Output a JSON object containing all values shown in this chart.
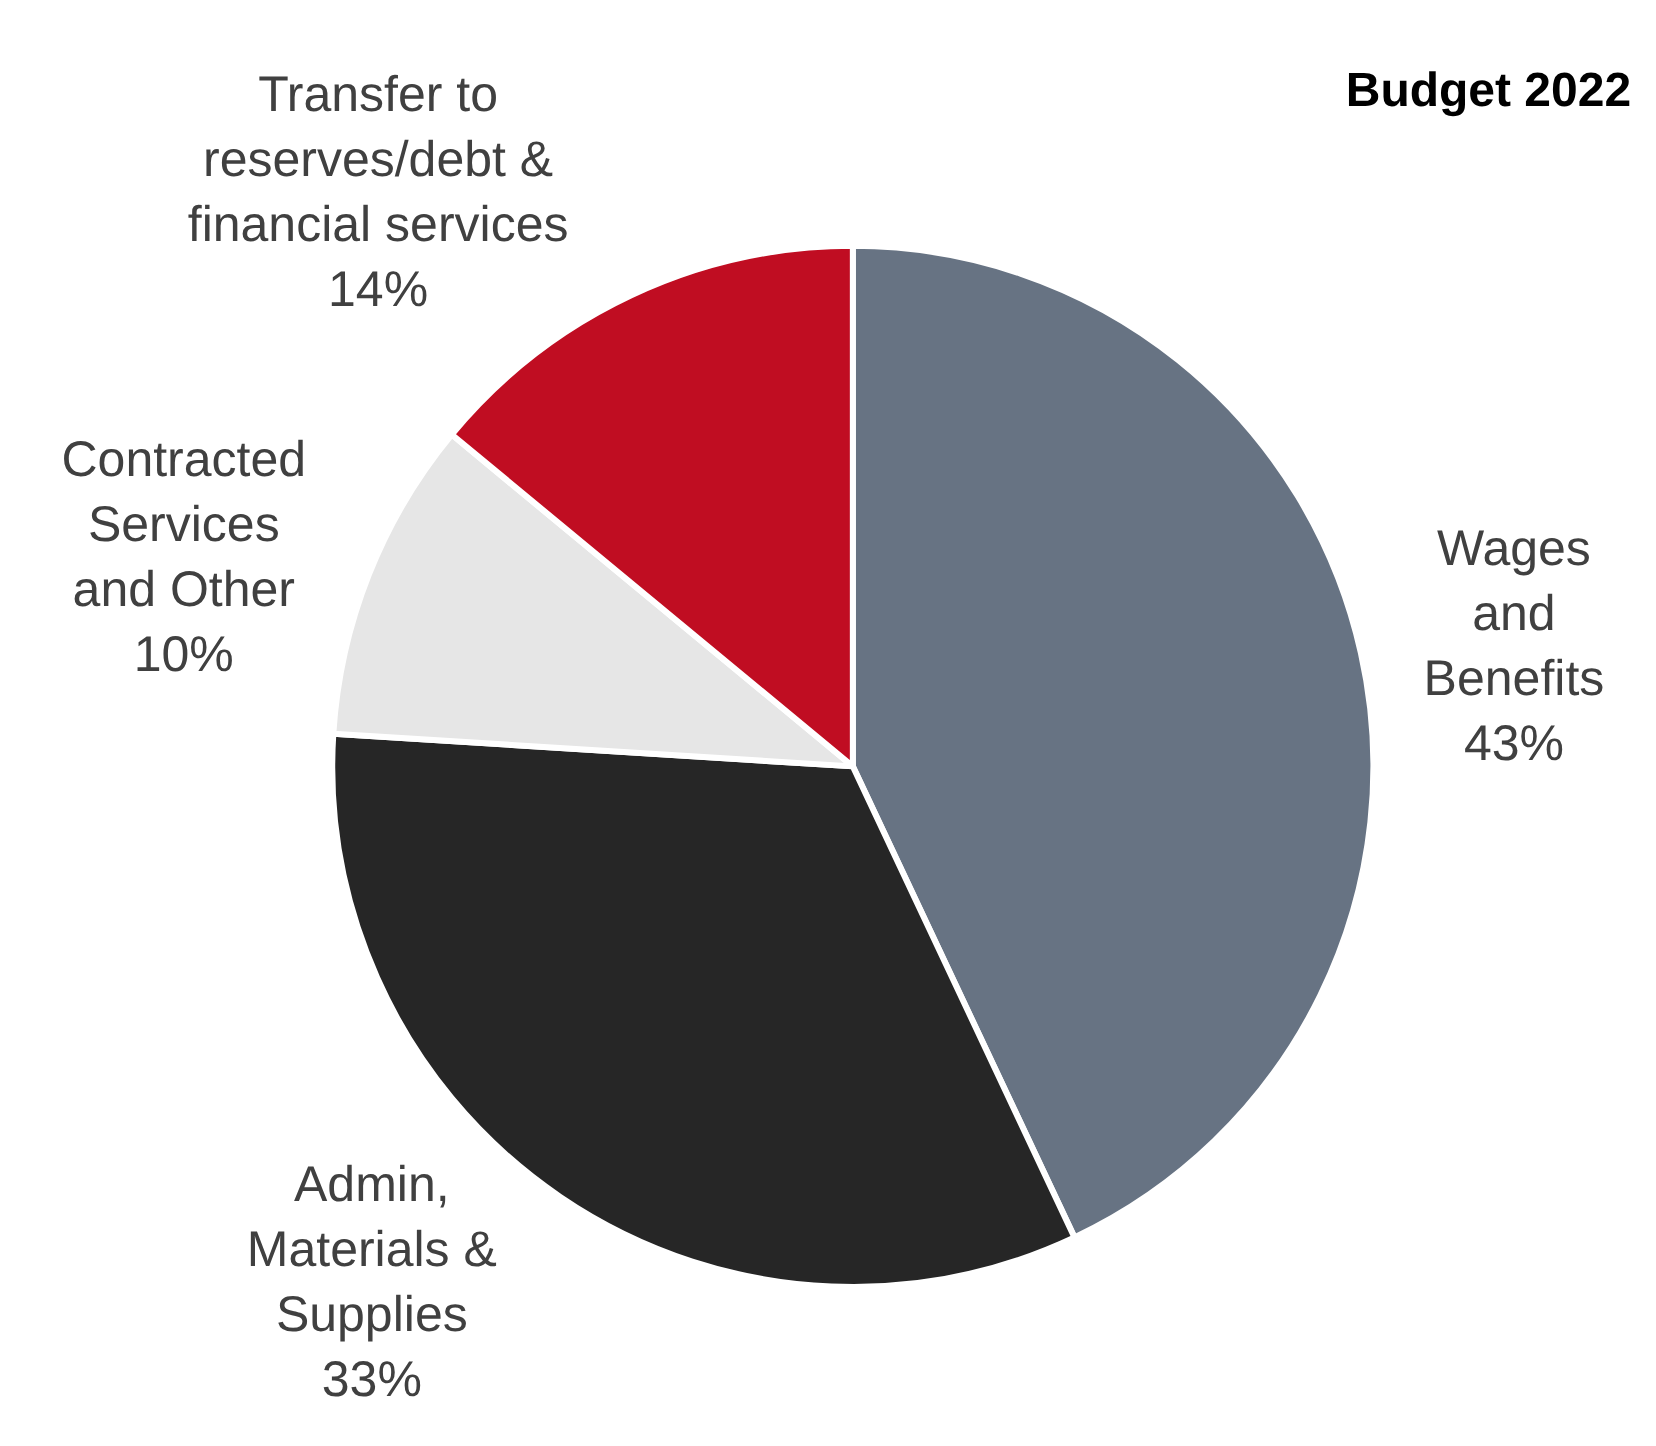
{
  "chart_data": {
    "type": "pie",
    "title": "Budget 2022",
    "categories": [
      "Wages\nand\nBenefits",
      "Admin,\nMaterials &\nSupplies",
      "Contracted\nServices\nand Other",
      "Transfer to\nreserves/debt &\nfinancial services"
    ],
    "values": [
      43,
      33,
      10,
      14
    ],
    "colors": [
      "#677383",
      "#262626",
      "#e6e6e6",
      "#c00d22"
    ],
    "value_labels": [
      "43%",
      "33%",
      "10%",
      "14%"
    ],
    "legend": false
  }
}
